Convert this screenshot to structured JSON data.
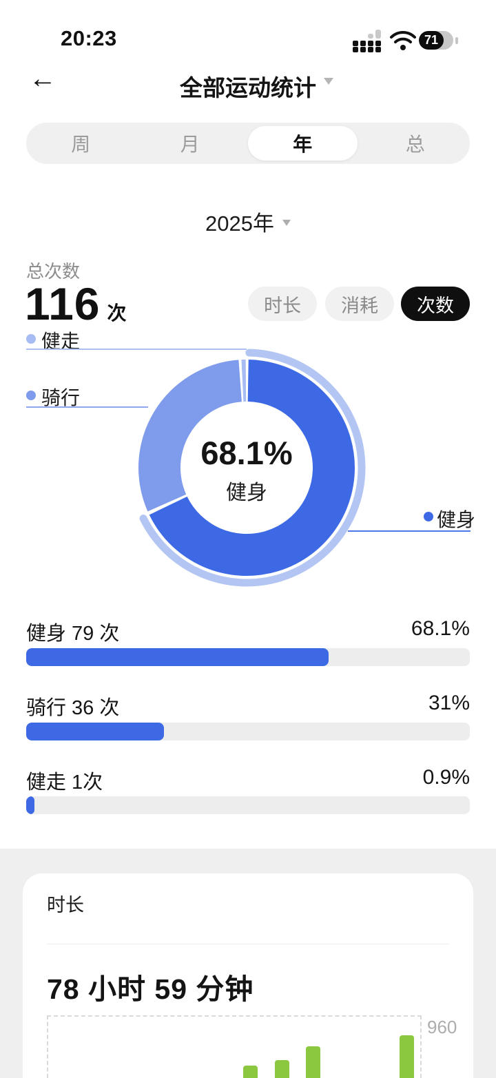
{
  "status_bar": {
    "time": "20:23",
    "battery_percent": "71"
  },
  "header": {
    "back_glyph": "←",
    "title": "全部运动统计"
  },
  "tabs": {
    "items": [
      {
        "label": "周",
        "active": false
      },
      {
        "label": "月",
        "active": false
      },
      {
        "label": "年",
        "active": true
      },
      {
        "label": "总",
        "active": false
      }
    ]
  },
  "year_selector": {
    "label": "2025年"
  },
  "summary": {
    "label": "总次数",
    "value": "116",
    "unit": "次"
  },
  "metric_pills": [
    {
      "label": "时长",
      "active": false
    },
    {
      "label": "消耗",
      "active": false
    },
    {
      "label": "次数",
      "active": true
    }
  ],
  "donut_center": {
    "percent": "68.1%",
    "name": "健身"
  },
  "stat_rows": [
    {
      "label": "健身 79 次",
      "percent_label": "68.1%",
      "percent": 68.1
    },
    {
      "label": "骑行 36 次",
      "percent_label": "31%",
      "percent": 31
    },
    {
      "label": "健走 1次",
      "percent_label": "0.9%",
      "percent": 0.9
    }
  ],
  "duration_card": {
    "title": "时长",
    "value": "78 小时 59 分钟",
    "ymax_label": "960"
  },
  "colors": {
    "accent_blue": "#3d6ae4",
    "cycling_blue": "#7e9bec",
    "walking_blue": "#a7bcf2",
    "highlight_arc": "#b3c5f3",
    "bar_green": "#8cc83f",
    "track_gray": "#ededee"
  },
  "chart_data": [
    {
      "type": "pie",
      "title": "运动次数占比(年)",
      "slices": [
        {
          "label": "健身",
          "value": 79,
          "pct": 68.1,
          "color": "#3d6ae4"
        },
        {
          "label": "骑行",
          "value": 36,
          "pct": 31.0,
          "color": "#7e9bec"
        },
        {
          "label": "健走",
          "value": 1,
          "pct": 0.9,
          "color": "#a7bcf2"
        }
      ],
      "center_label": {
        "pct": "68.1%",
        "name": "健身"
      },
      "legend_position": "around",
      "highlighted_slice": "健身",
      "geometry": {
        "cx": 198,
        "cy": 189,
        "r_inner": 96,
        "r_outer": 157,
        "r_highlight": 167
      }
    },
    {
      "type": "bar",
      "title": "时长 (分钟/月, 局部可见)",
      "ylim": [
        0,
        960
      ],
      "ymax_label": "960",
      "values_estimated": true,
      "bars": [
        {
          "slot": 7,
          "value_est": 690,
          "px": {
            "left": 353,
            "top": 1547,
            "width": 21
          }
        },
        {
          "slot": 8,
          "value_est": 720,
          "px": {
            "left": 399,
            "top": 1539,
            "width": 21
          }
        },
        {
          "slot": 9,
          "value_est": 795,
          "px": {
            "left": 444,
            "top": 1519,
            "width": 21
          }
        },
        {
          "slot": 12,
          "value_est": 855,
          "px": {
            "left": 580,
            "top": 1503,
            "width": 21
          }
        }
      ]
    }
  ]
}
